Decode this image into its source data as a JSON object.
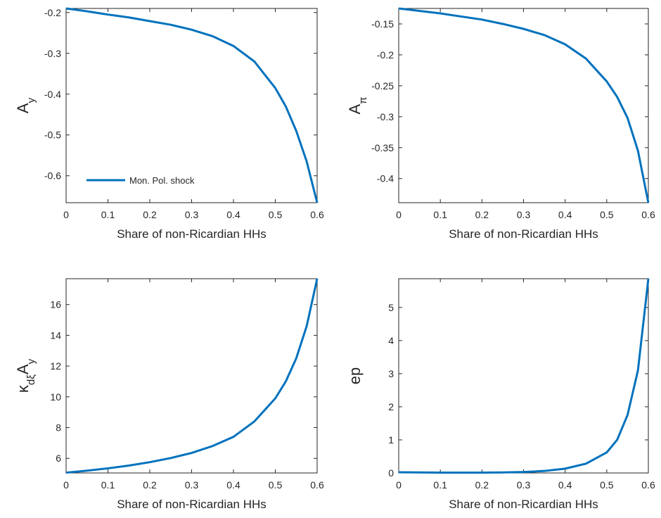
{
  "chart_data": [
    {
      "type": "line",
      "ylabel": [
        {
          "text": "A"
        },
        {
          "text": "y",
          "sub": true
        }
      ],
      "xlabel": "Share of non-Ricardian HHs",
      "x": [
        0,
        0.05,
        0.1,
        0.15,
        0.2,
        0.25,
        0.3,
        0.35,
        0.4,
        0.45,
        0.5,
        0.525,
        0.55,
        0.575,
        0.6
      ],
      "series": [
        {
          "name": "Mon. Pol. shock",
          "color": "#0072bd",
          "values": [
            -0.19,
            -0.197,
            -0.205,
            -0.212,
            -0.221,
            -0.23,
            -0.242,
            -0.258,
            -0.282,
            -0.32,
            -0.385,
            -0.43,
            -0.49,
            -0.565,
            -0.666
          ]
        }
      ],
      "xlim": [
        0,
        0.6
      ],
      "xticks": [
        0,
        0.1,
        0.2,
        0.3,
        0.4,
        0.5,
        0.6
      ],
      "ylim": [
        -0.666,
        -0.19
      ],
      "yticks": [
        -0.6,
        -0.5,
        -0.4,
        -0.3,
        -0.2
      ],
      "legend": "lower left"
    },
    {
      "type": "line",
      "ylabel": [
        {
          "text": "A"
        },
        {
          "text": "π",
          "sub": true
        }
      ],
      "xlabel": "Share of non-Ricardian HHs",
      "x": [
        0,
        0.05,
        0.1,
        0.15,
        0.2,
        0.25,
        0.3,
        0.35,
        0.4,
        0.45,
        0.5,
        0.525,
        0.55,
        0.575,
        0.6
      ],
      "series": [
        {
          "color": "#0072bd",
          "values": [
            -0.125,
            -0.129,
            -0.133,
            -0.138,
            -0.143,
            -0.15,
            -0.158,
            -0.168,
            -0.183,
            -0.206,
            -0.243,
            -0.268,
            -0.302,
            -0.355,
            -0.439
          ]
        }
      ],
      "xlim": [
        0,
        0.6
      ],
      "xticks": [
        0,
        0.1,
        0.2,
        0.3,
        0.4,
        0.5,
        0.6
      ],
      "ylim": [
        -0.439,
        -0.125
      ],
      "yticks": [
        -0.4,
        -0.35,
        -0.3,
        -0.25,
        -0.2,
        -0.15
      ]
    },
    {
      "type": "line",
      "ylabel": [
        {
          "text": "κ"
        },
        {
          "text": "dξ",
          "sub": true
        },
        {
          "text": "A"
        },
        {
          "text": "y",
          "sub": true
        }
      ],
      "xlabel": "Share of non-Ricardian HHs",
      "x": [
        0,
        0.05,
        0.1,
        0.15,
        0.2,
        0.25,
        0.3,
        0.35,
        0.4,
        0.45,
        0.5,
        0.525,
        0.55,
        0.575,
        0.6
      ],
      "series": [
        {
          "color": "#0072bd",
          "values": [
            5.07,
            5.2,
            5.35,
            5.53,
            5.75,
            6.02,
            6.35,
            6.8,
            7.4,
            8.4,
            9.9,
            11,
            12.5,
            14.6,
            17.68
          ]
        }
      ],
      "xlim": [
        0,
        0.6
      ],
      "xticks": [
        0,
        0.1,
        0.2,
        0.3,
        0.4,
        0.5,
        0.6
      ],
      "ylim": [
        5.05,
        17.68
      ],
      "yticks": [
        6,
        8,
        10,
        12,
        14,
        16
      ]
    },
    {
      "type": "line",
      "ylabel": [
        {
          "text": "ep"
        }
      ],
      "xlabel": "Share of non-Ricardian HHs",
      "x": [
        0,
        0.05,
        0.1,
        0.15,
        0.2,
        0.25,
        0.3,
        0.35,
        0.4,
        0.45,
        0.5,
        0.525,
        0.55,
        0.575,
        0.6
      ],
      "series": [
        {
          "color": "#0072bd",
          "values": [
            0.02,
            0.015,
            0.01,
            0.01,
            0.01,
            0.015,
            0.03,
            0.06,
            0.13,
            0.28,
            0.62,
            1.0,
            1.75,
            3.1,
            5.87
          ]
        }
      ],
      "xlim": [
        0,
        0.6
      ],
      "xticks": [
        0,
        0.1,
        0.2,
        0.3,
        0.4,
        0.5,
        0.6
      ],
      "ylim": [
        0,
        5.87
      ],
      "yticks": [
        0,
        1,
        2,
        3,
        4,
        5
      ]
    }
  ]
}
